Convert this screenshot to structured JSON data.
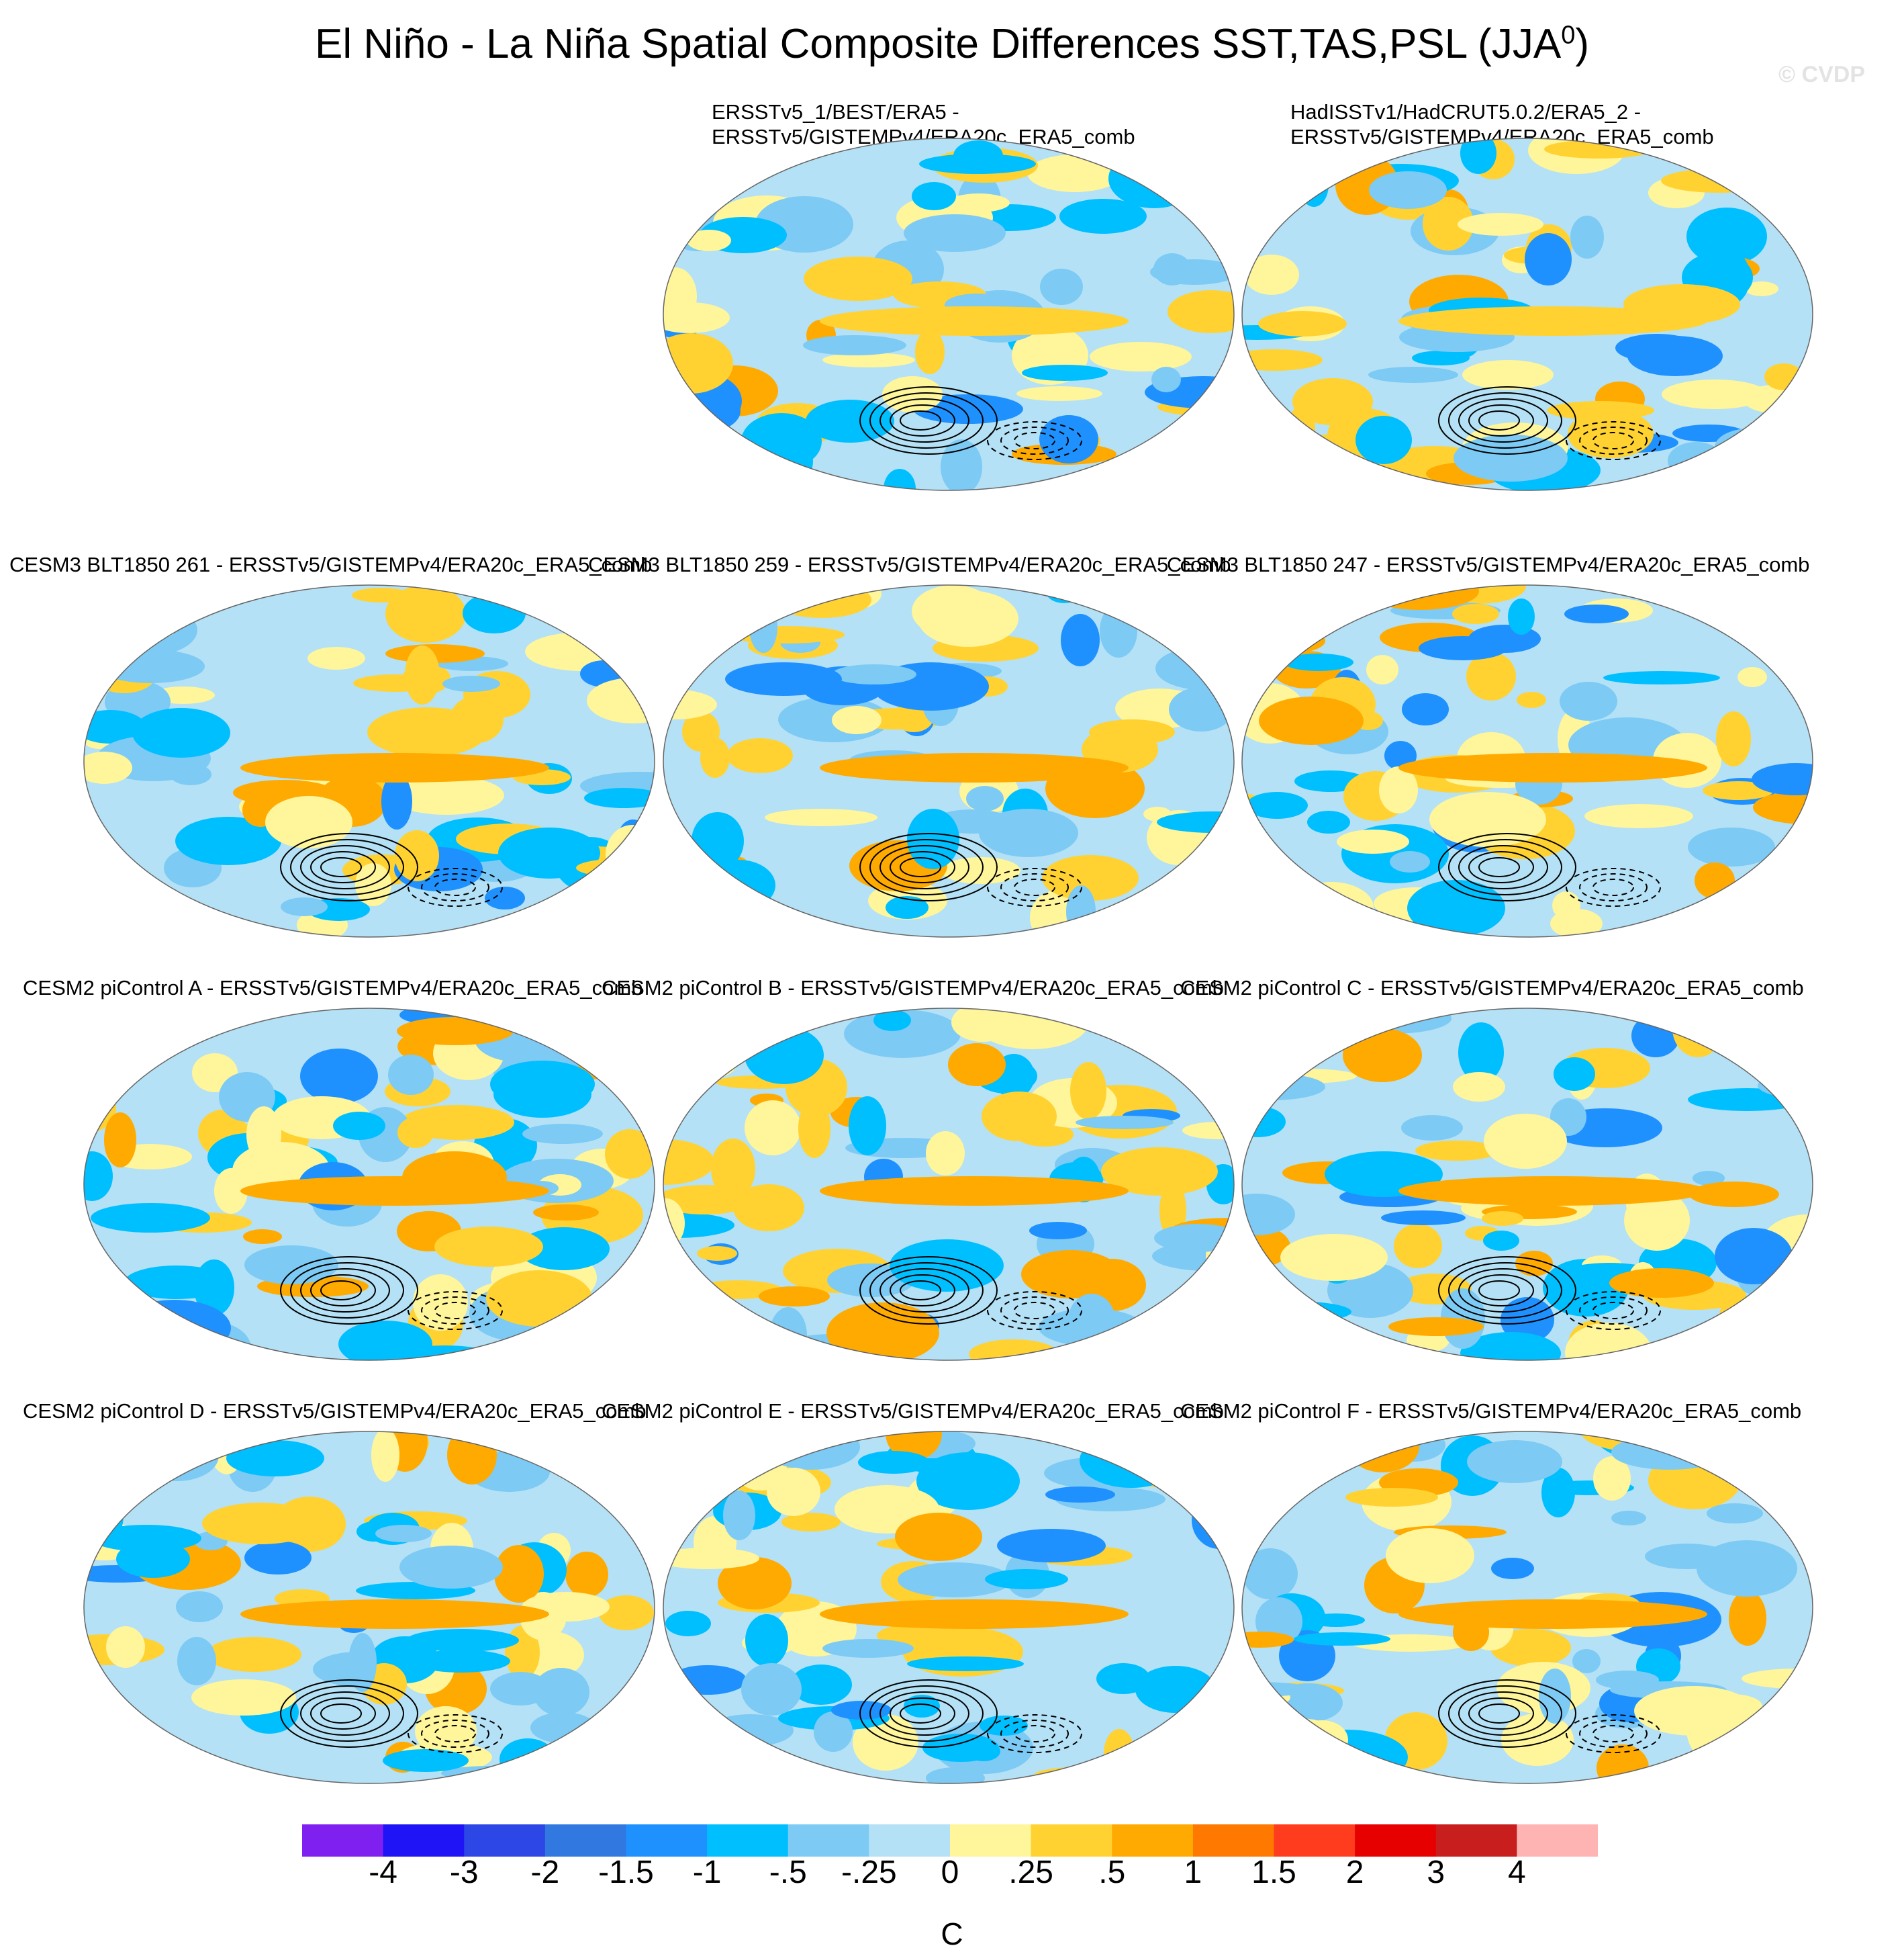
{
  "title_main": "El Niño - La Niña Spatial Composite Differences SST,TAS,PSL (JJA",
  "title_sup": "0",
  "title_end": ")",
  "watermark": "© CVDP",
  "chart_data": {
    "type": "heatmap",
    "panels": [
      {
        "title": "ERSSTv5_1/BEST/ERA5 -\nERSSTv5/GISTEMPv4/ERA20c_ERA5_comb"
      },
      {
        "title": "HadISSTv1/HadCRUT5.0.2/ERA5_2 -\nERSSTv5/GISTEMPv4/ERA20c_ERA5_comb"
      },
      {
        "title": "CESM3 BLT1850 261 - ERSSTv5/GISTEMPv4/ERA20c_ERA5_comb"
      },
      {
        "title": "CESM3 BLT1850 259 - ERSSTv5/GISTEMPv4/ERA20c_ERA5_comb"
      },
      {
        "title": "CESM3 BLT1850 247 - ERSSTv5/GISTEMPv4/ERA20c_ERA5_comb"
      },
      {
        "title": "CESM2 piControl A - ERSSTv5/GISTEMPv4/ERA20c_ERA5_comb"
      },
      {
        "title": "CESM2 piControl B - ERSSTv5/GISTEMPv4/ERA20c_ERA5_comb"
      },
      {
        "title": "CESM2 piControl C - ERSSTv5/GISTEMPv4/ERA20c_ERA5_comb"
      },
      {
        "title": "CESM2 piControl D - ERSSTv5/GISTEMPv4/ERA20c_ERA5_comb"
      },
      {
        "title": "CESM2 piControl E - ERSSTv5/GISTEMPv4/ERA20c_ERA5_comb"
      },
      {
        "title": "CESM2 piControl F - ERSSTv5/GISTEMPv4/ERA20c_ERA5_comb"
      }
    ],
    "colorbar": {
      "levels": [
        "-4",
        "-3",
        "-2",
        "-1.5",
        "-1",
        "-.5",
        "-.25",
        "0",
        ".25",
        ".5",
        "1",
        "1.5",
        "2",
        "3",
        "4"
      ],
      "colors": [
        "#7f1ff0",
        "#1e14f5",
        "#2d46e6",
        "#3278e1",
        "#1e91ff",
        "#00bfff",
        "#7dcaf5",
        "#b4e1f5",
        "#fff59b",
        "#ffd232",
        "#ffaa00",
        "#ff7800",
        "#ff3c1e",
        "#e60000",
        "#c81e1e",
        "#ffb4b4"
      ],
      "label": "C"
    }
  }
}
